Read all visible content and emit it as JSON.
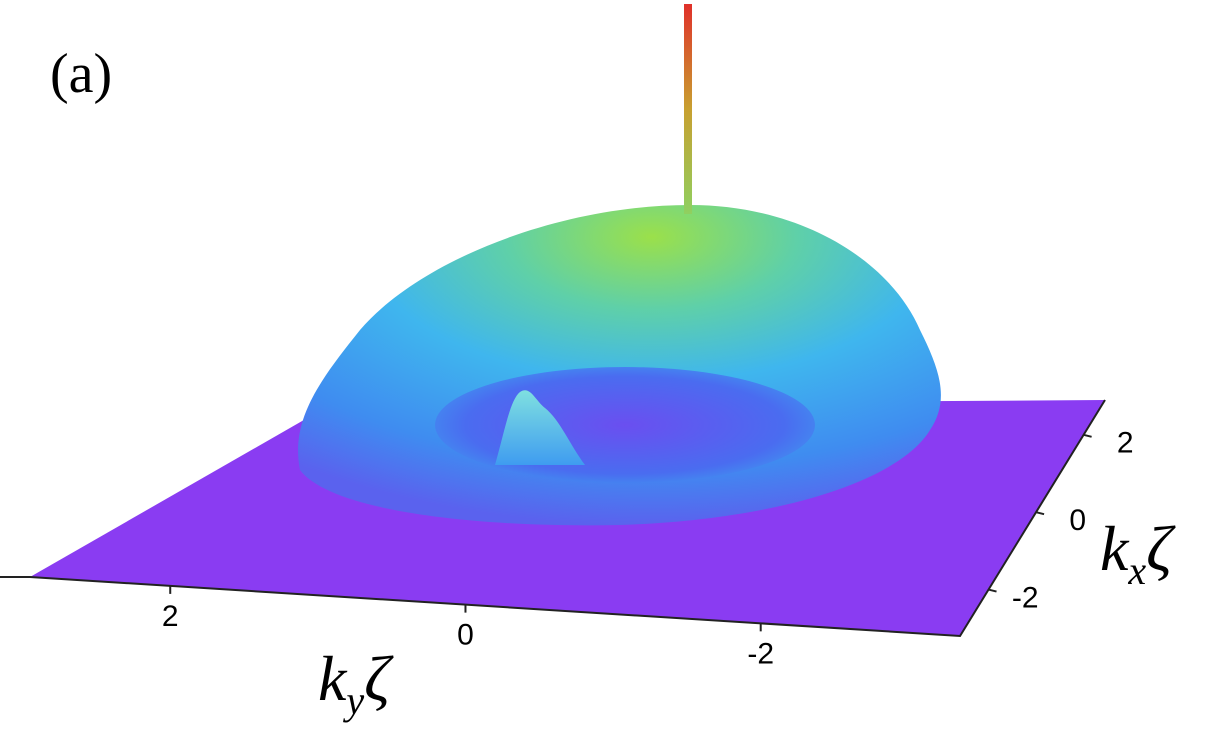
{
  "chart_data": {
    "type": "surface3d",
    "title": "(a)",
    "xlabel": [
      "k",
      "y",
      "ζ"
    ],
    "ylabel": [
      "k",
      "x",
      "ζ"
    ],
    "xlim": [
      2.95,
      -3.35
    ],
    "xticks": [
      2,
      0,
      -2
    ],
    "ylim": [
      -3.2,
      2.9
    ],
    "yticks": [
      2,
      0,
      -2
    ]
  }
}
